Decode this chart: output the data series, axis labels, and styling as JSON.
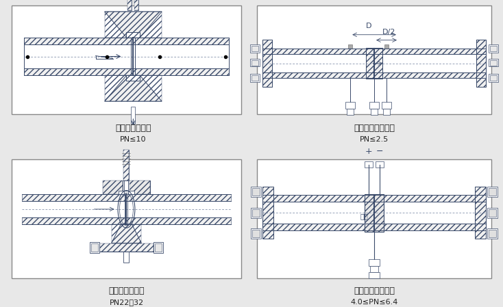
{
  "bg_color": "#e8e8e8",
  "panel_bg": "#ffffff",
  "line_color": "#3a4a6a",
  "border_color": "#444444",
  "labels": {
    "tl_title": "焊接式八槽孔板",
    "tl_sub": "PN≤10",
    "tr_title": "径距取压标准孔板",
    "tr_sub": "PN≤2.5",
    "bl_title": "高压透镜垫孔板",
    "bl_sub": "PN22，32",
    "br_title": "法兰取压标准孔板",
    "br_sub": "4.0≤PN≤6.4"
  },
  "font_size_title": 9,
  "font_size_sub": 8
}
